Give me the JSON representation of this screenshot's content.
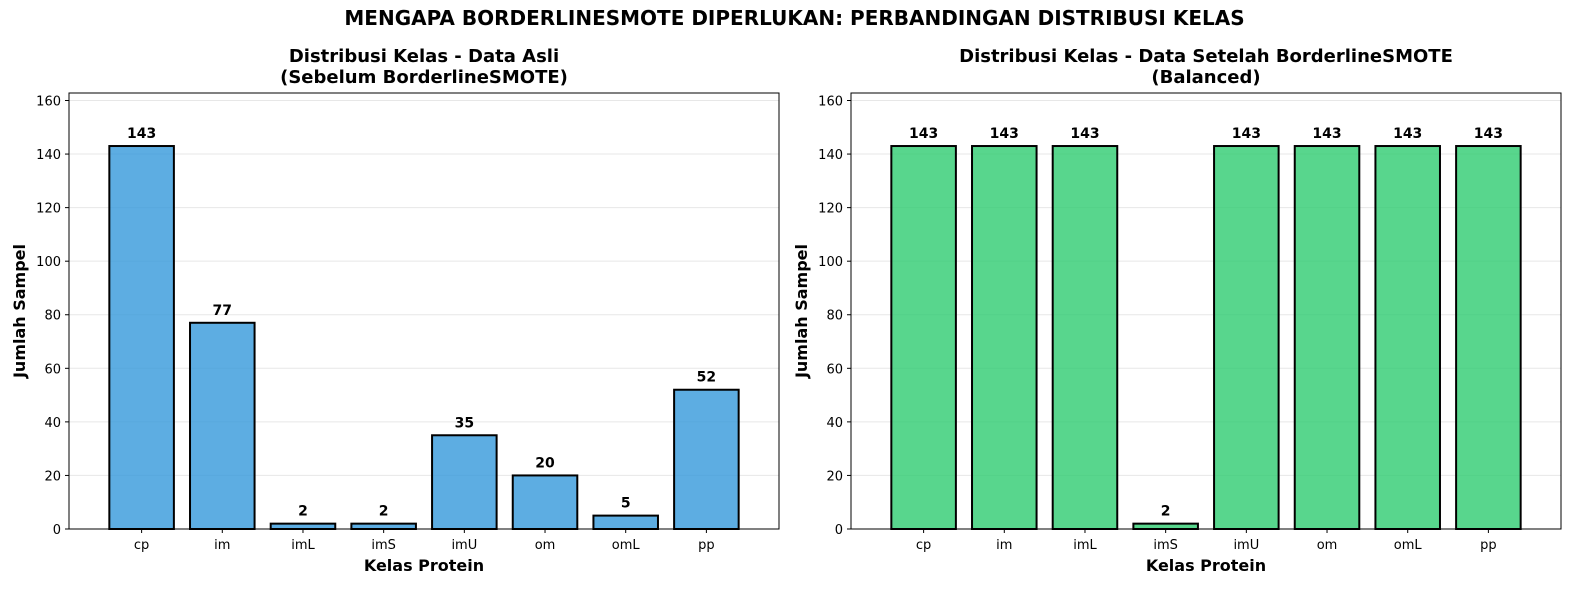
{
  "figure": {
    "suptitle": "MENGAPA BORDERLINESMOTE DIPERLUKAN: PERBANDINGAN DISTRIBUSI KELAS"
  },
  "chart_data": [
    {
      "type": "bar",
      "title_line1": "Distribusi Kelas - Data Asli",
      "title_line2": "(Sebelum BorderlineSMOTE)",
      "xlabel": "Kelas Protein",
      "ylabel": "Jumlah Sampel",
      "categories": [
        "cp",
        "im",
        "imL",
        "imS",
        "imU",
        "om",
        "omL",
        "pp"
      ],
      "values": [
        143,
        77,
        2,
        2,
        35,
        20,
        5,
        52
      ],
      "data_labels": [
        "143",
        "77",
        "2",
        "2",
        "35",
        "20",
        "5",
        "52"
      ],
      "ylim": [
        0,
        162.8
      ],
      "yticks": [
        0,
        20,
        40,
        60,
        80,
        100,
        120,
        140,
        160
      ],
      "ytick_labels": [
        "0",
        "20",
        "40",
        "60",
        "80",
        "100",
        "120",
        "140",
        "160"
      ],
      "grid": "y",
      "bar_color": "#3498db"
    },
    {
      "type": "bar",
      "title_line1": "Distribusi Kelas - Data Setelah BorderlineSMOTE",
      "title_line2": "(Balanced)",
      "xlabel": "Kelas Protein",
      "ylabel": "Jumlah Sampel",
      "categories": [
        "cp",
        "im",
        "imL",
        "imS",
        "imU",
        "om",
        "omL",
        "pp"
      ],
      "values": [
        143,
        143,
        143,
        2,
        143,
        143,
        143,
        143
      ],
      "data_labels": [
        "143",
        "143",
        "143",
        "2",
        "143",
        "143",
        "143",
        "143"
      ],
      "ylim": [
        0,
        162.8
      ],
      "yticks": [
        0,
        20,
        40,
        60,
        80,
        100,
        120,
        140,
        160
      ],
      "ytick_labels": [
        "0",
        "20",
        "40",
        "60",
        "80",
        "100",
        "120",
        "140",
        "160"
      ],
      "grid": "y",
      "bar_color": "#2ecc71"
    }
  ]
}
